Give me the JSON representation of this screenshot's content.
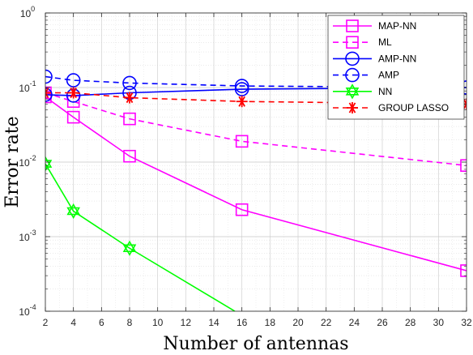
{
  "chart_data": {
    "type": "line",
    "xlabel": "Number of antennas",
    "ylabel": "Error rate",
    "xlim": [
      2,
      32
    ],
    "ylim": [
      0.0001,
      1
    ],
    "yscale": "log",
    "grid": true,
    "legend_position": "top-right",
    "x_ticks": [
      "2",
      "4",
      "6",
      "8",
      "10",
      "12",
      "14",
      "16",
      "18",
      "20",
      "22",
      "24",
      "26",
      "28",
      "30",
      "32"
    ],
    "y_ticks": [
      {
        "base": "10",
        "exp": "0",
        "value": 1
      },
      {
        "base": "10",
        "exp": "-1",
        "value": 0.1
      },
      {
        "base": "10",
        "exp": "-2",
        "value": 0.01
      },
      {
        "base": "10",
        "exp": "-3",
        "value": 0.001
      },
      {
        "base": "10",
        "exp": "-4",
        "value": 0.0001
      }
    ],
    "series": [
      {
        "name": "MAP-NN",
        "color": "#ff00ff",
        "dash": "solid",
        "marker": "square",
        "x": [
          2,
          4,
          8,
          16,
          32
        ],
        "y": [
          0.075,
          0.04,
          0.012,
          0.0023,
          0.00035
        ]
      },
      {
        "name": "ML",
        "color": "#ff00ff",
        "dash": "dashed",
        "marker": "square",
        "x": [
          2,
          4,
          8,
          16,
          32
        ],
        "y": [
          0.085,
          0.065,
          0.038,
          0.019,
          0.009
        ]
      },
      {
        "name": "AMP-NN",
        "color": "#0000ff",
        "dash": "solid",
        "marker": "circle",
        "x": [
          2,
          4,
          8,
          16,
          32
        ],
        "y": [
          0.08,
          0.078,
          0.085,
          0.095,
          0.1
        ]
      },
      {
        "name": "AMP",
        "color": "#0000ff",
        "dash": "dashed",
        "marker": "circle",
        "x": [
          2,
          4,
          8,
          16,
          32
        ],
        "y": [
          0.14,
          0.125,
          0.115,
          0.105,
          0.1
        ]
      },
      {
        "name": "NN",
        "color": "#00ff00",
        "dash": "solid",
        "marker": "hexagram",
        "x": [
          2,
          4,
          8,
          15.5
        ],
        "y": [
          0.0095,
          0.0022,
          0.0007,
          0.0001
        ]
      },
      {
        "name": "GROUP LASSO",
        "color": "#ff0000",
        "dash": "dashed",
        "marker": "asterisk",
        "x": [
          2,
          4,
          8,
          16,
          32
        ],
        "y": [
          0.085,
          0.085,
          0.073,
          0.065,
          0.06
        ]
      }
    ]
  }
}
